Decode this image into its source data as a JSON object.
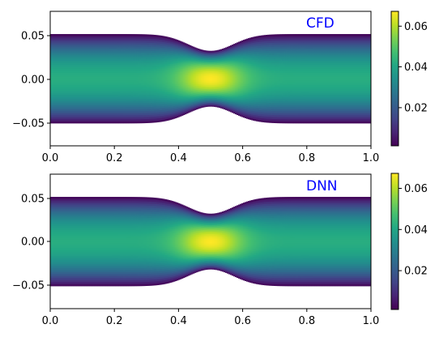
{
  "chart_data": [
    {
      "type": "heatmap",
      "annotation": "CFD",
      "annotation_color": "#0000ff",
      "x_ticks": [
        "0.0",
        "0.2",
        "0.4",
        "0.6",
        "0.8",
        "1.0"
      ],
      "y_ticks": [
        "0.05",
        "0.00",
        "−0.05"
      ],
      "xlim": [
        0.0,
        1.0
      ],
      "ylim": [
        -0.08,
        0.08
      ],
      "colorbar_ticks": [
        "0.06",
        "0.04",
        "0.02"
      ],
      "colorbar_range": [
        0.0,
        0.067
      ],
      "colormap": "viridis",
      "wall_half_width_at_ends": 0.053,
      "throat_half_width": 0.033,
      "throat_x": 0.5,
      "field_max": 0.067
    },
    {
      "type": "heatmap",
      "annotation": "DNN",
      "annotation_color": "#0000ff",
      "x_ticks": [
        "0.0",
        "0.2",
        "0.4",
        "0.6",
        "0.8",
        "1.0"
      ],
      "y_ticks": [
        "0.05",
        "0.00",
        "−0.05"
      ],
      "xlim": [
        0.0,
        1.0
      ],
      "ylim": [
        -0.08,
        0.08
      ],
      "colorbar_ticks": [
        "0.06",
        "0.04",
        "0.02"
      ],
      "colorbar_range": [
        0.0,
        0.067
      ],
      "colormap": "viridis",
      "wall_half_width_at_ends": 0.053,
      "throat_half_width": 0.033,
      "throat_x": 0.5,
      "field_max": 0.067
    }
  ]
}
